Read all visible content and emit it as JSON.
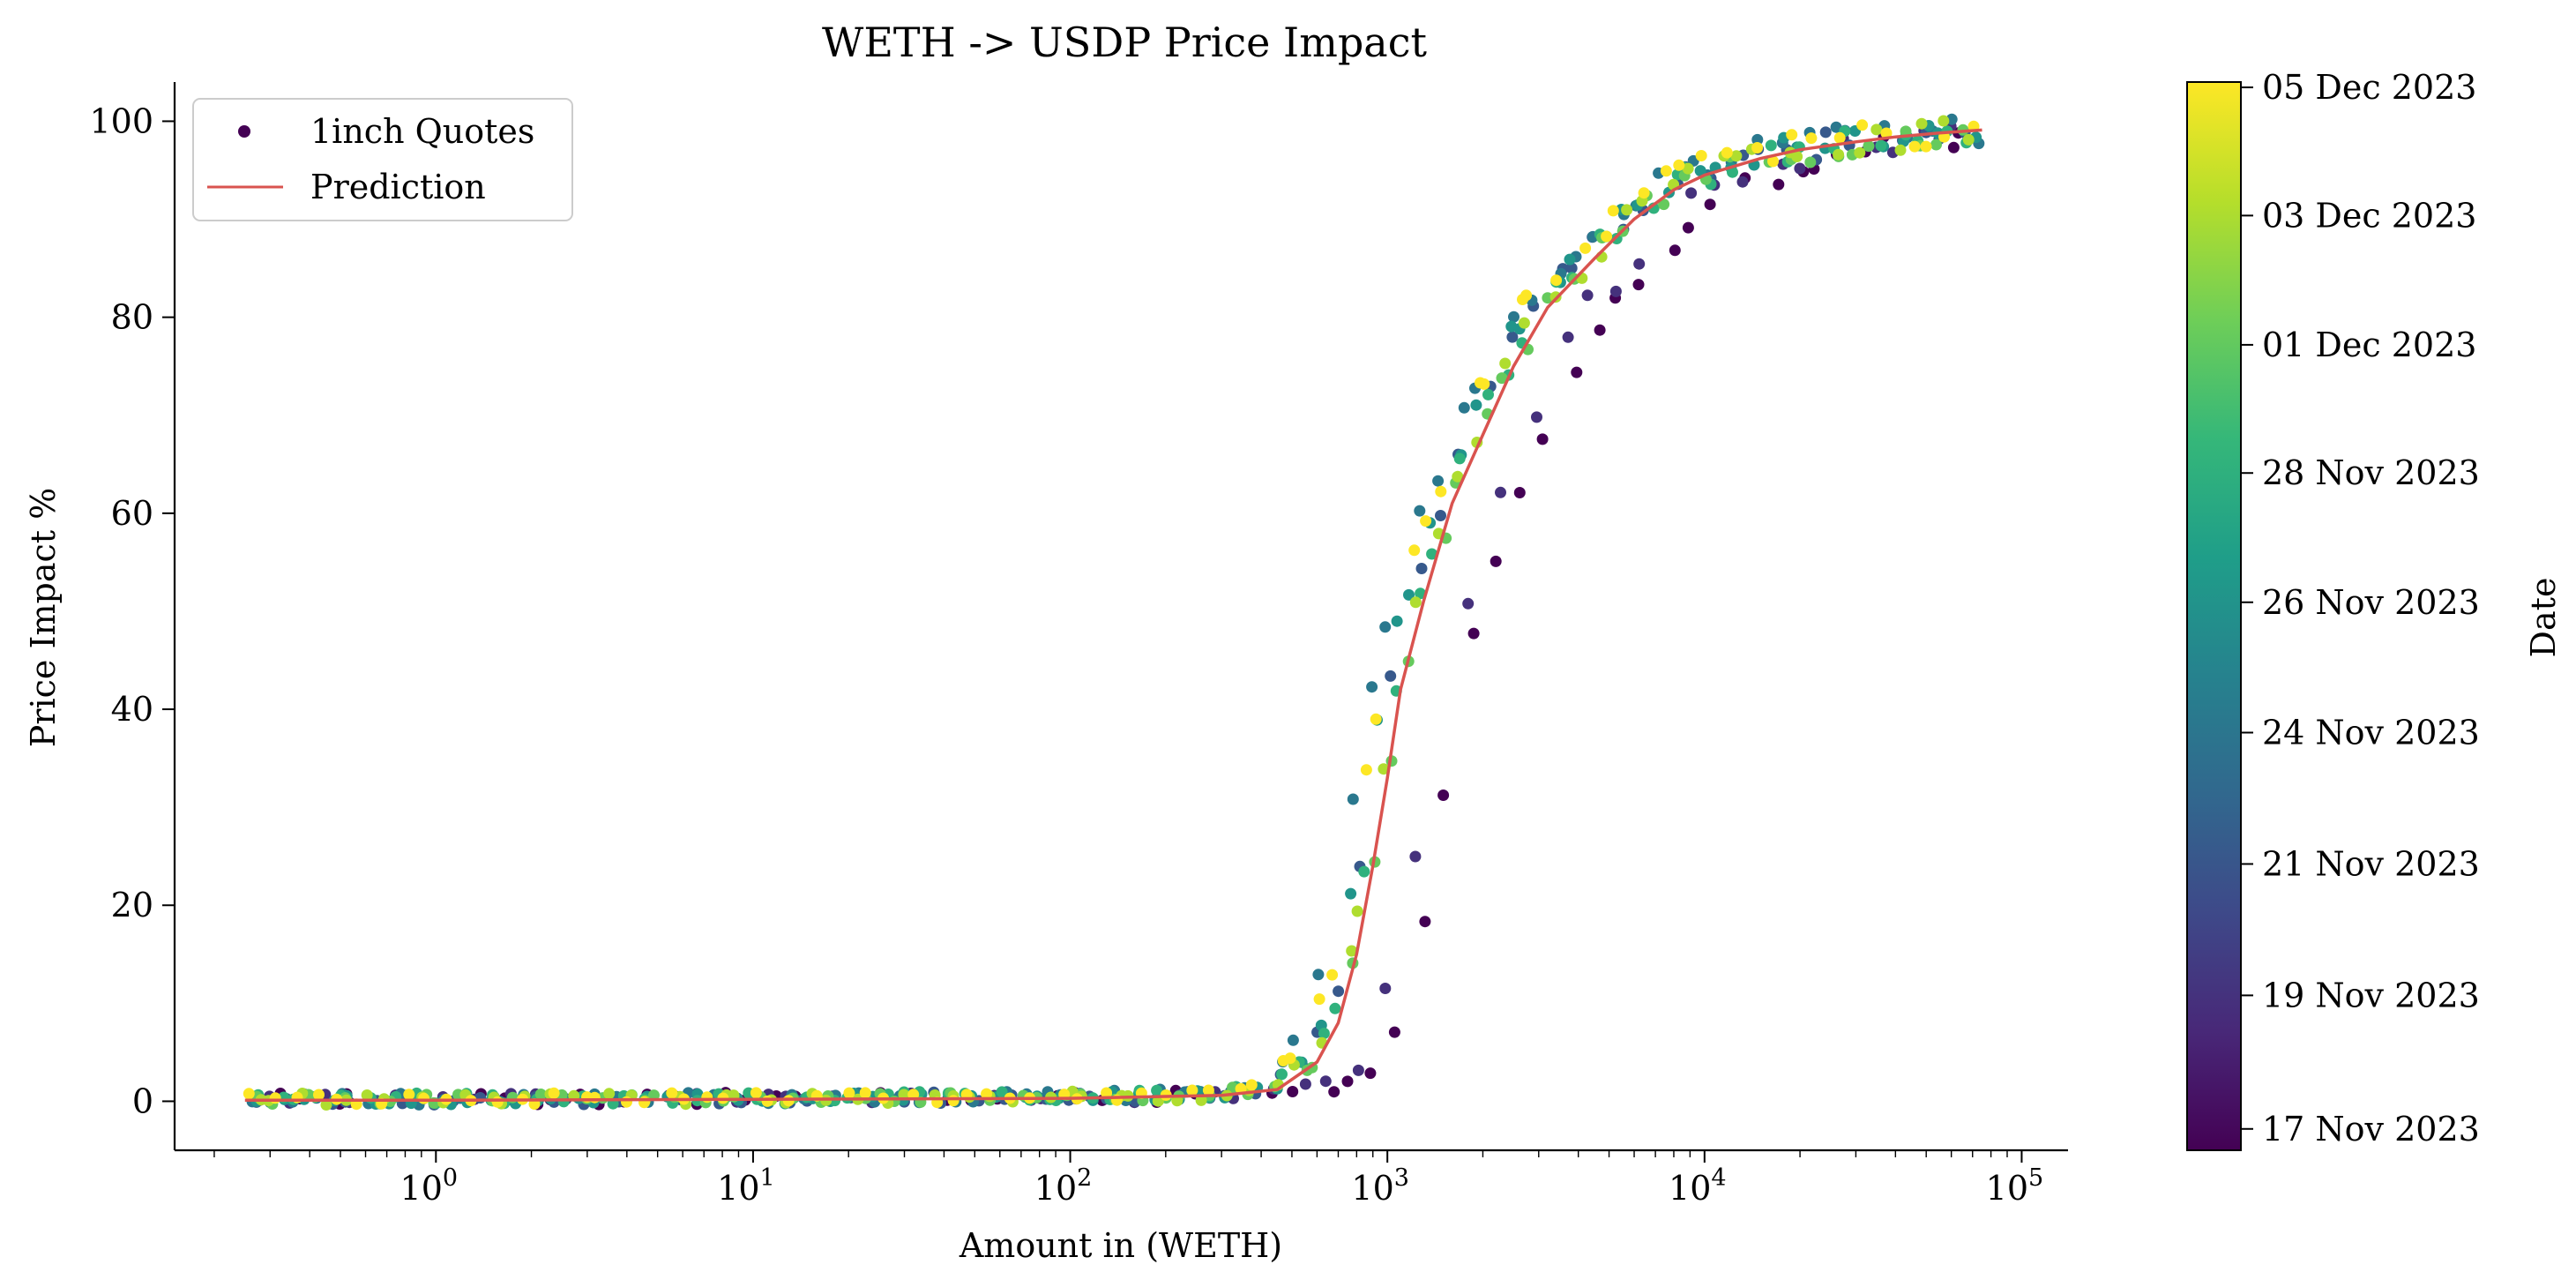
{
  "chart_data": {
    "type": "scatter",
    "title": "WETH -> USDP Price Impact",
    "xlabel": "Amount in (WETH)",
    "ylabel": "Price Impact %",
    "xscale": "log",
    "xlim": [
      0.15,
      140000
    ],
    "ylim": [
      -5,
      104
    ],
    "x_ticks": [
      {
        "value": 1,
        "base": "10",
        "exp": "0"
      },
      {
        "value": 10,
        "base": "10",
        "exp": "1"
      },
      {
        "value": 100,
        "base": "10",
        "exp": "2"
      },
      {
        "value": 1000,
        "base": "10",
        "exp": "3"
      },
      {
        "value": 10000,
        "base": "10",
        "exp": "4"
      },
      {
        "value": 100000,
        "base": "10",
        "exp": "5"
      }
    ],
    "y_ticks": [
      0,
      20,
      40,
      60,
      80,
      100
    ],
    "grid": false,
    "legend": {
      "placement": "top-left",
      "entries": [
        {
          "label": "1inch Quotes",
          "kind": "marker",
          "color": "#440154"
        },
        {
          "label": "Prediction",
          "kind": "line",
          "color": "#d9534f"
        }
      ]
    },
    "colorbar": {
      "label": "Date",
      "colormap": "viridis",
      "colors": [
        "#440154",
        "#482878",
        "#3e4989",
        "#31688e",
        "#26828e",
        "#1f9e89",
        "#35b779",
        "#6ece58",
        "#b5de2b",
        "#fde725"
      ],
      "ticks": [
        {
          "label": "17 Nov 2023",
          "pos": 0.02
        },
        {
          "label": "19 Nov 2023",
          "pos": 0.145
        },
        {
          "label": "21 Nov 2023",
          "pos": 0.268
        },
        {
          "label": "24 Nov 2023",
          "pos": 0.391
        },
        {
          "label": "26 Nov 2023",
          "pos": 0.513
        },
        {
          "label": "28 Nov 2023",
          "pos": 0.634
        },
        {
          "label": "01 Dec 2023",
          "pos": 0.754
        },
        {
          "label": "03 Dec 2023",
          "pos": 0.875
        },
        {
          "label": "05 Dec 2023",
          "pos": 0.995
        }
      ]
    },
    "prediction": {
      "color": "#d9534f",
      "x": [
        0.25,
        1,
        10,
        100,
        300,
        450,
        600,
        700,
        800,
        900,
        1000,
        1100,
        1300,
        1600,
        2000,
        2500,
        3200,
        4500,
        6000,
        8000,
        10000,
        15000,
        20000,
        30000,
        40000,
        55000,
        75000
      ],
      "y": [
        0.1,
        0.1,
        0.2,
        0.3,
        0.6,
        1.2,
        4,
        8,
        15,
        24,
        33,
        42,
        51,
        61,
        68,
        75,
        81,
        86,
        90,
        93,
        94.5,
        96.2,
        97.1,
        97.9,
        98.4,
        98.8,
        99.1
      ]
    },
    "quotes_series": [
      {
        "name": "17 Nov 2023",
        "t": 0.0,
        "x_shift": 1.55,
        "n": 70
      },
      {
        "name": "19 Nov 2023",
        "t": 0.14,
        "x_shift": 1.35,
        "n": 55
      },
      {
        "name": "21 Nov 2023",
        "t": 0.28,
        "x_shift": 0.92,
        "n": 75
      },
      {
        "name": "24 Nov 2023",
        "t": 0.4,
        "x_shift": 0.8,
        "n": 75
      },
      {
        "name": "26 Nov 2023",
        "t": 0.52,
        "x_shift": 0.88,
        "n": 75
      },
      {
        "name": "28 Nov 2023",
        "t": 0.64,
        "x_shift": 0.95,
        "n": 75
      },
      {
        "name": "01 Dec 2023",
        "t": 0.76,
        "x_shift": 1.0,
        "n": 75
      },
      {
        "name": "03 Dec 2023",
        "t": 0.88,
        "x_shift": 0.95,
        "n": 75
      },
      {
        "name": "05 Dec 2023",
        "t": 1.0,
        "x_shift": 0.85,
        "n": 80
      }
    ]
  }
}
